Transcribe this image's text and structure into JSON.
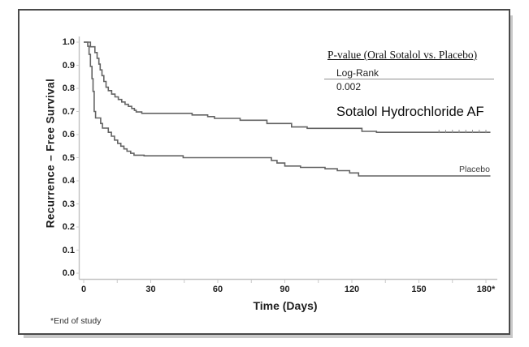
{
  "colors": {
    "curve": "#636363",
    "axis": "#c2c2c2",
    "tick": "#c9c9c9",
    "censor_mark": "#909090",
    "text": "#1f1f1f",
    "stats_rule": "#8f8f8f",
    "frame_border": "#4a4a4a"
  },
  "chart_data": {
    "type": "line",
    "subtype": "kaplan_meier_step",
    "title": "",
    "xlabel": "Time (Days)",
    "ylabel": "Recurrence – Free Survival",
    "xlim": [
      0,
      186
    ],
    "ylim": [
      0.0,
      1.0
    ],
    "grid": false,
    "legend_position": "top-right-inside",
    "x_ticks": [
      0,
      30,
      60,
      90,
      120,
      150,
      180
    ],
    "x_tick_labels": [
      "0",
      "30",
      "60",
      "90",
      "120",
      "150",
      "180*"
    ],
    "y_ticks": [
      1.0,
      0.9,
      0.8,
      0.7,
      0.6,
      0.5,
      0.4,
      0.3,
      0.2,
      0.1,
      0.0
    ],
    "y_tick_labels": [
      "1.0",
      "0.9",
      "0.8",
      "0.7",
      "0.6",
      "0.5",
      "0.4",
      "0.3",
      "0.2",
      "0.1",
      "0.0"
    ],
    "stats": {
      "heading": "P-value (Oral Sotalol vs. Placebo)",
      "test_name": "Log-Rank",
      "p_value": "0.002"
    },
    "footnote": "*End of study",
    "series": [
      {
        "name": "Sotalol Hydrochloride AF",
        "points": [
          [
            0,
            1.0
          ],
          [
            3,
            0.98
          ],
          [
            5,
            0.955
          ],
          [
            6,
            0.93
          ],
          [
            6.8,
            0.905
          ],
          [
            7.4,
            0.88
          ],
          [
            8.2,
            0.855
          ],
          [
            9,
            0.83
          ],
          [
            10,
            0.805
          ],
          [
            11,
            0.79
          ],
          [
            12.5,
            0.775
          ],
          [
            14,
            0.763
          ],
          [
            15.5,
            0.752
          ],
          [
            17,
            0.741
          ],
          [
            18.5,
            0.731
          ],
          [
            20,
            0.722
          ],
          [
            21.5,
            0.713
          ],
          [
            22.7,
            0.705
          ],
          [
            23.5,
            0.698
          ],
          [
            26,
            0.692
          ],
          [
            48.5,
            0.685
          ],
          [
            55.5,
            0.678
          ],
          [
            58.5,
            0.67
          ],
          [
            70,
            0.662
          ],
          [
            82,
            0.648
          ],
          [
            93,
            0.633
          ],
          [
            100,
            0.627
          ],
          [
            124.5,
            0.614
          ],
          [
            131,
            0.61
          ],
          [
            182,
            0.61
          ]
        ],
        "censor_mark_days": [
          159,
          162,
          165,
          168,
          171,
          174,
          177,
          180
        ]
      },
      {
        "name": "Placebo",
        "points": [
          [
            0,
            1.0
          ],
          [
            1.8,
            0.982
          ],
          [
            2.4,
            0.947
          ],
          [
            3.0,
            0.895
          ],
          [
            3.7,
            0.842
          ],
          [
            4.2,
            0.787
          ],
          [
            4.7,
            0.7
          ],
          [
            5.3,
            0.672
          ],
          [
            7.6,
            0.648
          ],
          [
            8.4,
            0.628
          ],
          [
            11,
            0.61
          ],
          [
            12.4,
            0.593
          ],
          [
            13.8,
            0.576
          ],
          [
            15.2,
            0.562
          ],
          [
            16.6,
            0.55
          ],
          [
            18,
            0.538
          ],
          [
            19.4,
            0.528
          ],
          [
            21,
            0.519
          ],
          [
            22.5,
            0.511
          ],
          [
            27,
            0.508
          ],
          [
            44.5,
            0.5
          ],
          [
            84,
            0.488
          ],
          [
            86.5,
            0.477
          ],
          [
            90,
            0.464
          ],
          [
            97,
            0.458
          ],
          [
            108,
            0.452
          ],
          [
            113.5,
            0.444
          ],
          [
            119,
            0.434
          ],
          [
            123,
            0.421
          ],
          [
            182,
            0.421
          ]
        ],
        "censor_mark_days": []
      }
    ]
  }
}
